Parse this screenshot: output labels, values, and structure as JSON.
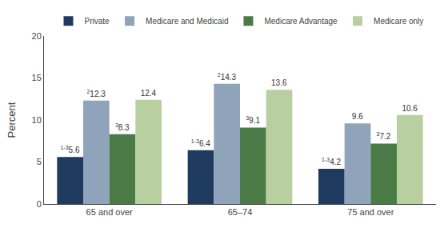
{
  "chart_data": {
    "type": "bar",
    "categories": [
      "65 and over",
      "65–74",
      "75 and over"
    ],
    "series": [
      {
        "name": "Private",
        "color": "#1e3a5f",
        "values": [
          5.6,
          6.4,
          4.2
        ],
        "annotations": [
          "1-3",
          "1-3",
          "1-3"
        ]
      },
      {
        "name": "Medicare and Medicaid",
        "color": "#8fa3bb",
        "values": [
          12.3,
          14.3,
          9.6
        ],
        "annotations": [
          "2",
          "2",
          null
        ]
      },
      {
        "name": "Medicare Advantage",
        "color": "#4a7a45",
        "values": [
          8.3,
          9.1,
          7.2
        ],
        "annotations": [
          "3",
          "3",
          "3"
        ]
      },
      {
        "name": "Medicare only",
        "color": "#b8cfa0",
        "values": [
          12.4,
          13.6,
          10.6
        ]
      }
    ],
    "ylabel": "Percent",
    "ylim": [
      0,
      20
    ],
    "yticks": [
      0,
      5,
      10,
      15,
      20
    ],
    "grid": false,
    "legend": "top",
    "data_labels": true
  }
}
